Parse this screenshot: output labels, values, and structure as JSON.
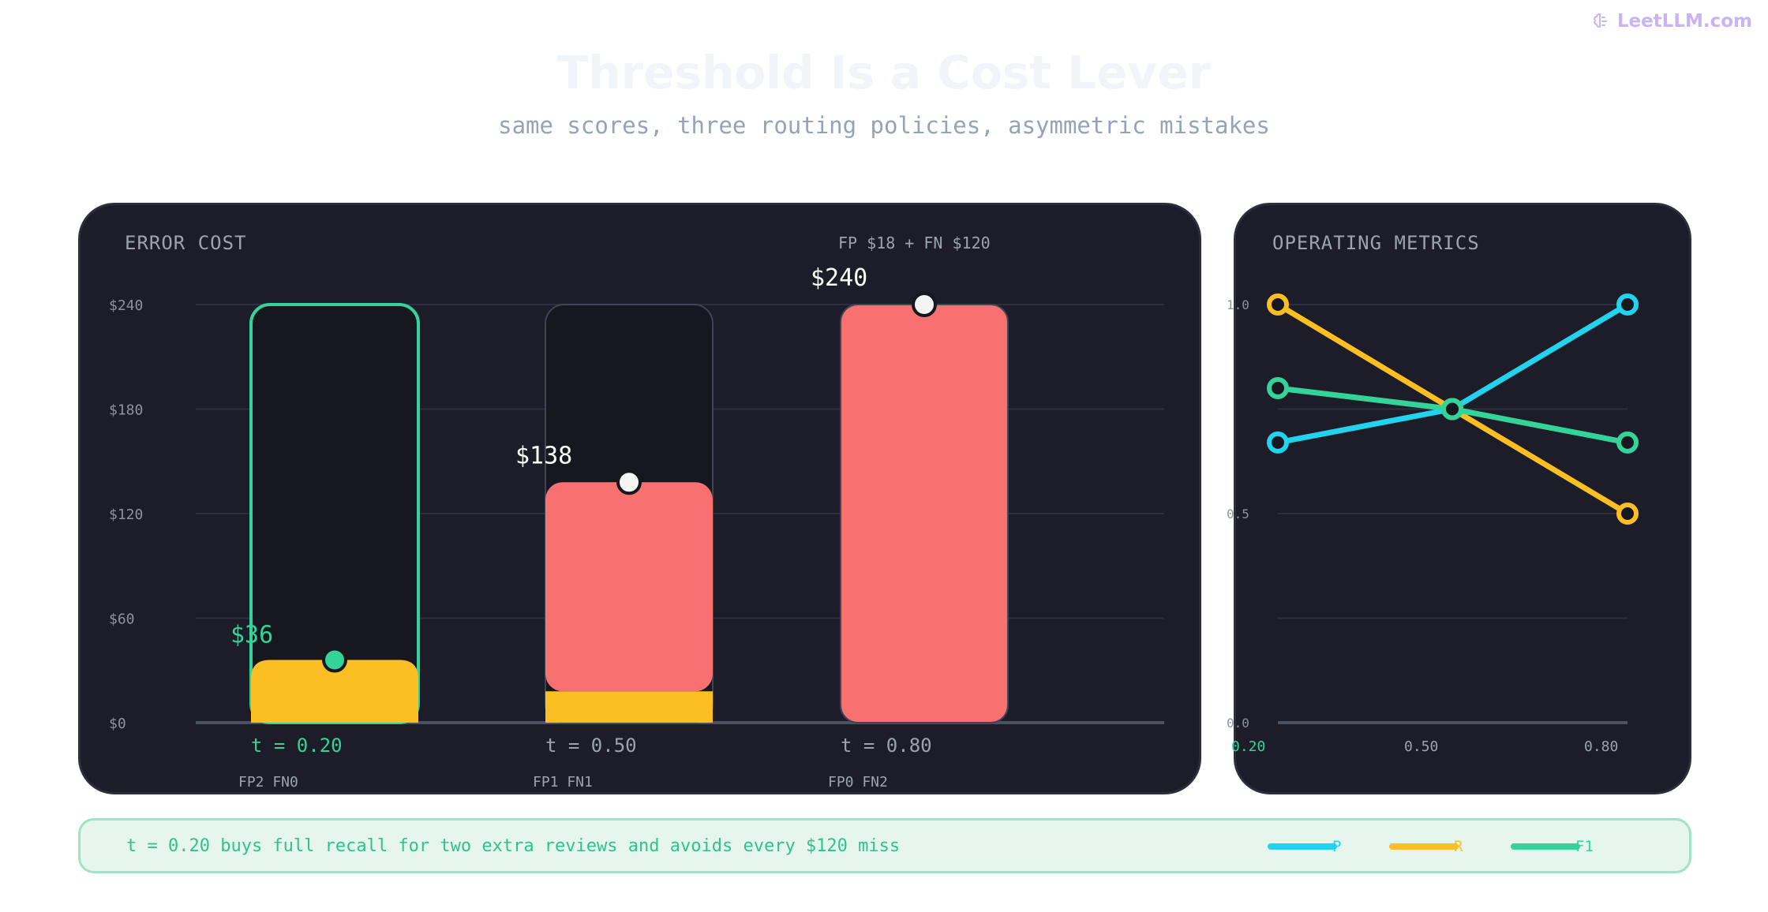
{
  "brand": {
    "name": "LeetLLM.com"
  },
  "title": "Threshold Is a Cost Lever",
  "subtitle": "same scores, three routing policies, asymmetric mistakes",
  "colors": {
    "fp": "#fbbf24",
    "fn": "#f87171",
    "selected": "#34d399",
    "p": "#22d3ee",
    "r": "#fbbf24",
    "f1": "#34d399"
  },
  "cost_panel": {
    "title": "ERROR COST",
    "formula": "FP $18 + FN $120"
  },
  "metrics_panel": {
    "title": "OPERATING METRICS"
  },
  "chart_data": [
    {
      "type": "bar",
      "title": "ERROR COST",
      "annotation": "FP $18 + FN $120",
      "categories": [
        "t = 0.20",
        "t = 0.50",
        "t = 0.80"
      ],
      "sub_labels": [
        "FP2 FN0",
        "FP1 FN1",
        "FP0 FN2"
      ],
      "series": [
        {
          "name": "FP",
          "values": [
            36,
            18,
            0
          ]
        },
        {
          "name": "FN",
          "values": [
            0,
            120,
            240
          ]
        }
      ],
      "totals": [
        36,
        138,
        240
      ],
      "total_labels": [
        "$36",
        "$138",
        "$240"
      ],
      "selected_index": 0,
      "yticks": [
        "$0",
        "$60",
        "$120",
        "$180",
        "$240"
      ],
      "ylim": [
        0,
        240
      ],
      "grid": true,
      "stacked": true
    },
    {
      "type": "line",
      "title": "OPERATING METRICS",
      "x": [
        "0.20",
        "0.50",
        "0.80"
      ],
      "series": [
        {
          "name": "P",
          "values": [
            0.67,
            0.75,
            1.0
          ]
        },
        {
          "name": "R",
          "values": [
            1.0,
            0.75,
            0.5
          ]
        },
        {
          "name": "F1",
          "values": [
            0.8,
            0.75,
            0.67
          ]
        }
      ],
      "yticks": [
        "0.0",
        "0.5",
        "1.0"
      ],
      "ylim": [
        0,
        1
      ],
      "grid": true,
      "legend": "bottom-right"
    }
  ],
  "footer": {
    "text": "t = 0.20 buys full recall for two extra reviews and avoids every $120 miss",
    "legend": [
      "P",
      "R",
      "F1"
    ]
  }
}
